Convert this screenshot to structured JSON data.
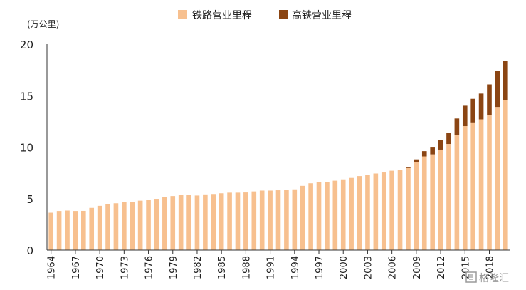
{
  "colors": {
    "railway": "#f7c08f",
    "hsr": "#8b4513",
    "axis": "#333333"
  },
  "watermark": "格隆汇",
  "chart_data": {
    "type": "bar",
    "stacked": true,
    "ylabel": "(万公里)",
    "ylim": [
      0,
      20
    ],
    "yticks": [
      0,
      5,
      10,
      15,
      20
    ],
    "legend_position": "top-center",
    "x": [
      1964,
      1965,
      1966,
      1967,
      1968,
      1969,
      1970,
      1971,
      1972,
      1973,
      1974,
      1975,
      1976,
      1977,
      1978,
      1979,
      1980,
      1981,
      1982,
      1983,
      1984,
      1985,
      1986,
      1987,
      1988,
      1989,
      1990,
      1991,
      1992,
      1993,
      1994,
      1995,
      1996,
      1997,
      1998,
      1999,
      2000,
      2001,
      2002,
      2003,
      2004,
      2005,
      2006,
      2007,
      2008,
      2009,
      2010,
      2011,
      2012,
      2013,
      2014,
      2015,
      2016,
      2017,
      2018,
      2019,
      2020
    ],
    "xtick_labels": [
      "1964",
      "1967",
      "1970",
      "1973",
      "1976",
      "1979",
      "1982",
      "1985",
      "1988",
      "1991",
      "1994",
      "1997",
      "2000",
      "2003",
      "2006",
      "2009",
      "2012",
      "2015",
      "2018"
    ],
    "series": [
      {
        "name": "铁路营业里程",
        "values": [
          3.63,
          3.8,
          3.84,
          3.8,
          3.81,
          4.1,
          4.3,
          4.45,
          4.55,
          4.64,
          4.67,
          4.8,
          4.85,
          4.98,
          5.17,
          5.25,
          5.33,
          5.39,
          5.3,
          5.41,
          5.45,
          5.52,
          5.58,
          5.58,
          5.6,
          5.7,
          5.78,
          5.78,
          5.81,
          5.86,
          5.9,
          6.24,
          6.49,
          6.6,
          6.64,
          6.74,
          6.87,
          7.01,
          7.19,
          7.3,
          7.44,
          7.54,
          7.71,
          7.8,
          7.97,
          8.55,
          9.1,
          9.3,
          9.76,
          10.31,
          11.18,
          12.04,
          12.4,
          12.7,
          13.1,
          13.9,
          14.6
        ]
      },
      {
        "name": "高铁营业里程",
        "values": [
          0,
          0,
          0,
          0,
          0,
          0,
          0,
          0,
          0,
          0,
          0,
          0,
          0,
          0,
          0,
          0,
          0,
          0,
          0,
          0,
          0,
          0,
          0,
          0,
          0,
          0,
          0,
          0,
          0,
          0,
          0,
          0,
          0,
          0,
          0,
          0,
          0,
          0,
          0,
          0,
          0,
          0,
          0,
          0,
          0.07,
          0.26,
          0.51,
          0.66,
          0.94,
          1.1,
          1.6,
          1.98,
          2.29,
          2.5,
          2.99,
          3.5,
          3.79
        ]
      }
    ]
  }
}
